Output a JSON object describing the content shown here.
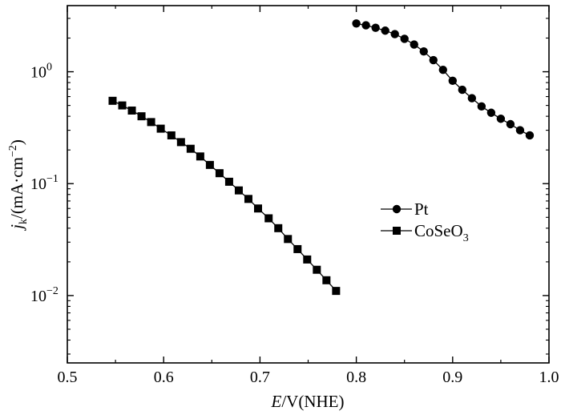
{
  "chart_data": {
    "type": "scatter",
    "x_axis": {
      "label_italic": "E",
      "label_rest": "/V(NHE)",
      "range": [
        0.5,
        1.0
      ],
      "ticks": [
        0.5,
        0.6,
        0.7,
        0.8,
        0.9,
        1.0
      ],
      "tick_labels": [
        "0.5",
        "0.6",
        "0.7",
        "0.8",
        "0.9",
        "1.0"
      ]
    },
    "y_axis": {
      "scale": "log",
      "label_italic": "j",
      "label_sub": "k",
      "label_rest": "/(mA·cm",
      "label_sup": "−2",
      "label_close": ")",
      "range": [
        0.0025,
        3.9
      ],
      "ticks": [
        {
          "value": 1,
          "base": "10",
          "exp": "0"
        },
        {
          "value": 0.1,
          "base": "10",
          "exp": "−1"
        },
        {
          "value": 0.01,
          "base": "10",
          "exp": "−2"
        }
      ]
    },
    "grid": false,
    "legend_position": "center-right",
    "series": [
      {
        "name": "Pt",
        "marker": "circle",
        "color": "#000000",
        "points": [
          [
            0.8,
            2.7
          ],
          [
            0.81,
            2.6
          ],
          [
            0.82,
            2.47
          ],
          [
            0.83,
            2.33
          ],
          [
            0.84,
            2.17
          ],
          [
            0.85,
            1.97
          ],
          [
            0.86,
            1.75
          ],
          [
            0.87,
            1.52
          ],
          [
            0.88,
            1.27
          ],
          [
            0.89,
            1.04
          ],
          [
            0.9,
            0.83
          ],
          [
            0.91,
            0.69
          ],
          [
            0.92,
            0.58
          ],
          [
            0.93,
            0.49
          ],
          [
            0.94,
            0.43
          ],
          [
            0.95,
            0.38
          ],
          [
            0.96,
            0.34
          ],
          [
            0.97,
            0.3
          ],
          [
            0.98,
            0.27
          ]
        ]
      },
      {
        "name": "CoSeO",
        "name_sub": "3",
        "marker": "square",
        "color": "#000000",
        "points": [
          [
            0.547,
            0.55
          ],
          [
            0.557,
            0.5
          ],
          [
            0.567,
            0.45
          ],
          [
            0.577,
            0.4
          ],
          [
            0.587,
            0.355
          ],
          [
            0.597,
            0.31
          ],
          [
            0.608,
            0.27
          ],
          [
            0.618,
            0.235
          ],
          [
            0.628,
            0.205
          ],
          [
            0.638,
            0.175
          ],
          [
            0.648,
            0.147
          ],
          [
            0.658,
            0.124
          ],
          [
            0.668,
            0.104
          ],
          [
            0.678,
            0.087
          ],
          [
            0.688,
            0.073
          ],
          [
            0.698,
            0.06
          ],
          [
            0.709,
            0.049
          ],
          [
            0.719,
            0.04
          ],
          [
            0.729,
            0.032
          ],
          [
            0.739,
            0.026
          ],
          [
            0.749,
            0.021
          ],
          [
            0.759,
            0.017
          ],
          [
            0.769,
            0.0137
          ],
          [
            0.779,
            0.011
          ]
        ]
      }
    ]
  }
}
